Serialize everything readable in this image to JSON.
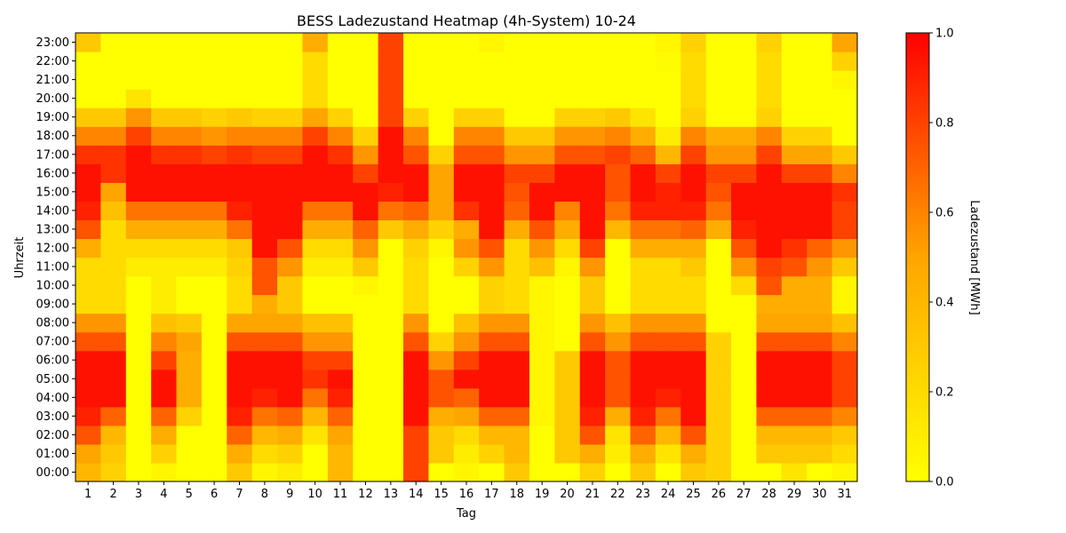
{
  "chart_data": {
    "type": "heatmap",
    "title": "BESS Ladezustand Heatmap (4h-System) 10-24",
    "xlabel": "Tag",
    "ylabel": "Uhrzeit",
    "colorbar_label": "Ladezustand [MWh]",
    "colorbar_ticks": [
      "0.0",
      "0.2",
      "0.4",
      "0.6",
      "0.8",
      "1.0"
    ],
    "vmin": 0.0,
    "vmax": 1.0,
    "colormap": [
      "#ffff00",
      "#ffa500",
      "#ff0000"
    ],
    "x_categories": [
      "1",
      "2",
      "3",
      "4",
      "5",
      "6",
      "7",
      "8",
      "9",
      "10",
      "11",
      "12",
      "13",
      "14",
      "15",
      "16",
      "17",
      "18",
      "19",
      "20",
      "21",
      "22",
      "23",
      "24",
      "25",
      "26",
      "27",
      "28",
      "29",
      "30",
      "31"
    ],
    "y_categories": [
      "00:00",
      "01:00",
      "02:00",
      "03:00",
      "04:00",
      "05:00",
      "06:00",
      "07:00",
      "08:00",
      "09:00",
      "10:00",
      "11:00",
      "12:00",
      "13:00",
      "14:00",
      "15:00",
      "16:00",
      "17:00",
      "18:00",
      "19:00",
      "20:00",
      "21:00",
      "22:00",
      "23:00"
    ],
    "values": [
      [
        0.4,
        0.25,
        0.0,
        0.05,
        0.0,
        0.0,
        0.3,
        0.05,
        0.1,
        0.0,
        0.4,
        0.0,
        0.0,
        0.8,
        0.0,
        0.05,
        0.0,
        0.3,
        0.0,
        0.0,
        0.25,
        0.0,
        0.3,
        0.0,
        0.3,
        0.25,
        0.0,
        0.0,
        0.15,
        0.0,
        0.05
      ],
      [
        0.5,
        0.3,
        0.0,
        0.25,
        0.0,
        0.0,
        0.45,
        0.2,
        0.25,
        0.0,
        0.4,
        0.0,
        0.0,
        0.8,
        0.3,
        0.1,
        0.25,
        0.4,
        0.0,
        0.3,
        0.45,
        0.1,
        0.45,
        0.15,
        0.45,
        0.25,
        0.0,
        0.3,
        0.3,
        0.3,
        0.2
      ],
      [
        0.75,
        0.4,
        0.0,
        0.45,
        0.0,
        0.0,
        0.7,
        0.4,
        0.45,
        0.15,
        0.5,
        0.0,
        0.0,
        0.8,
        0.3,
        0.2,
        0.4,
        0.4,
        0.0,
        0.3,
        0.75,
        0.15,
        0.7,
        0.4,
        0.75,
        0.25,
        0.0,
        0.4,
        0.4,
        0.4,
        0.3
      ],
      [
        0.9,
        0.7,
        0.0,
        0.7,
        0.25,
        0.0,
        0.9,
        0.65,
        0.7,
        0.4,
        0.7,
        0.0,
        0.0,
        0.95,
        0.45,
        0.5,
        0.7,
        0.7,
        0.05,
        0.3,
        0.9,
        0.45,
        0.9,
        0.65,
        0.95,
        0.25,
        0.0,
        0.7,
        0.7,
        0.7,
        0.6
      ],
      [
        0.95,
        0.95,
        0.0,
        0.95,
        0.45,
        0.0,
        0.95,
        0.9,
        0.95,
        0.65,
        0.9,
        0.0,
        0.0,
        0.95,
        0.75,
        0.7,
        0.95,
        0.95,
        0.05,
        0.3,
        0.95,
        0.75,
        0.95,
        0.9,
        0.95,
        0.25,
        0.0,
        0.95,
        0.95,
        0.95,
        0.8
      ],
      [
        0.95,
        0.95,
        0.0,
        0.95,
        0.45,
        0.0,
        0.95,
        0.95,
        0.95,
        0.85,
        0.95,
        0.0,
        0.0,
        0.95,
        0.75,
        0.95,
        0.95,
        0.95,
        0.05,
        0.3,
        0.95,
        0.75,
        0.95,
        0.95,
        0.95,
        0.25,
        0.0,
        0.95,
        0.95,
        0.95,
        0.8
      ],
      [
        0.95,
        0.95,
        0.0,
        0.8,
        0.45,
        0.0,
        0.95,
        0.95,
        0.95,
        0.8,
        0.8,
        0.0,
        0.0,
        0.95,
        0.55,
        0.8,
        0.95,
        0.95,
        0.05,
        0.3,
        0.95,
        0.75,
        0.95,
        0.95,
        0.95,
        0.25,
        0.0,
        0.95,
        0.95,
        0.95,
        0.8
      ],
      [
        0.75,
        0.75,
        0.0,
        0.6,
        0.5,
        0.0,
        0.75,
        0.75,
        0.75,
        0.55,
        0.55,
        0.0,
        0.0,
        0.75,
        0.25,
        0.55,
        0.75,
        0.75,
        0.05,
        0.0,
        0.75,
        0.55,
        0.75,
        0.75,
        0.75,
        0.25,
        0.0,
        0.75,
        0.75,
        0.75,
        0.6
      ],
      [
        0.55,
        0.55,
        0.0,
        0.35,
        0.3,
        0.0,
        0.5,
        0.5,
        0.5,
        0.35,
        0.35,
        0.0,
        0.0,
        0.55,
        0.0,
        0.35,
        0.55,
        0.55,
        0.05,
        0.0,
        0.55,
        0.35,
        0.55,
        0.55,
        0.55,
        0.0,
        0.0,
        0.5,
        0.5,
        0.5,
        0.35
      ],
      [
        0.2,
        0.2,
        0.0,
        0.1,
        0.0,
        0.0,
        0.2,
        0.45,
        0.3,
        0.0,
        0.0,
        0.0,
        0.0,
        0.2,
        0.0,
        0.0,
        0.25,
        0.2,
        0.05,
        0.0,
        0.3,
        0.0,
        0.2,
        0.2,
        0.2,
        0.0,
        0.0,
        0.45,
        0.45,
        0.45,
        0.05
      ],
      [
        0.2,
        0.2,
        0.0,
        0.1,
        0.0,
        0.0,
        0.2,
        0.75,
        0.3,
        0.0,
        0.0,
        0.05,
        0.0,
        0.2,
        0.0,
        0.0,
        0.25,
        0.2,
        0.05,
        0.0,
        0.3,
        0.0,
        0.2,
        0.2,
        0.2,
        0.0,
        0.2,
        0.75,
        0.45,
        0.45,
        0.05
      ],
      [
        0.2,
        0.2,
        0.1,
        0.1,
        0.1,
        0.1,
        0.25,
        0.75,
        0.55,
        0.1,
        0.1,
        0.3,
        0.0,
        0.2,
        0.0,
        0.25,
        0.55,
        0.2,
        0.35,
        0.05,
        0.55,
        0.0,
        0.2,
        0.2,
        0.3,
        0.0,
        0.55,
        0.8,
        0.75,
        0.55,
        0.3
      ],
      [
        0.45,
        0.2,
        0.2,
        0.2,
        0.2,
        0.2,
        0.3,
        0.95,
        0.75,
        0.2,
        0.2,
        0.55,
        0.0,
        0.25,
        0.05,
        0.55,
        0.75,
        0.2,
        0.55,
        0.2,
        0.8,
        0.0,
        0.45,
        0.45,
        0.45,
        0.0,
        0.75,
        0.95,
        0.85,
        0.7,
        0.55
      ],
      [
        0.75,
        0.2,
        0.45,
        0.45,
        0.45,
        0.45,
        0.65,
        0.95,
        0.95,
        0.45,
        0.45,
        0.7,
        0.3,
        0.45,
        0.25,
        0.45,
        0.95,
        0.45,
        0.75,
        0.45,
        0.95,
        0.4,
        0.65,
        0.65,
        0.7,
        0.45,
        0.9,
        0.95,
        0.95,
        0.95,
        0.8
      ],
      [
        0.9,
        0.35,
        0.65,
        0.65,
        0.65,
        0.65,
        0.9,
        0.95,
        0.95,
        0.65,
        0.65,
        0.95,
        0.65,
        0.7,
        0.5,
        0.85,
        0.95,
        0.7,
        0.95,
        0.6,
        0.95,
        0.65,
        0.9,
        0.9,
        0.9,
        0.65,
        0.95,
        0.95,
        0.95,
        0.95,
        0.8
      ],
      [
        0.95,
        0.5,
        0.95,
        0.95,
        0.95,
        0.95,
        0.95,
        0.95,
        0.95,
        0.95,
        0.95,
        0.95,
        0.9,
        0.95,
        0.5,
        0.95,
        0.95,
        0.75,
        0.95,
        0.95,
        0.95,
        0.75,
        0.95,
        0.9,
        0.95,
        0.75,
        0.95,
        0.95,
        0.95,
        0.95,
        0.85
      ],
      [
        0.95,
        0.85,
        0.95,
        0.95,
        0.95,
        0.95,
        0.95,
        0.95,
        0.95,
        0.95,
        0.95,
        0.8,
        0.95,
        0.95,
        0.5,
        0.95,
        0.95,
        0.8,
        0.8,
        0.95,
        0.95,
        0.75,
        0.95,
        0.8,
        0.95,
        0.8,
        0.8,
        0.95,
        0.8,
        0.8,
        0.6
      ],
      [
        0.85,
        0.85,
        0.95,
        0.85,
        0.85,
        0.8,
        0.85,
        0.8,
        0.8,
        0.95,
        0.85,
        0.55,
        0.95,
        0.75,
        0.25,
        0.75,
        0.75,
        0.55,
        0.55,
        0.75,
        0.75,
        0.8,
        0.7,
        0.4,
        0.8,
        0.55,
        0.55,
        0.8,
        0.5,
        0.5,
        0.3
      ],
      [
        0.6,
        0.6,
        0.8,
        0.6,
        0.6,
        0.55,
        0.6,
        0.6,
        0.6,
        0.8,
        0.6,
        0.25,
        0.95,
        0.6,
        0.0,
        0.6,
        0.6,
        0.3,
        0.3,
        0.55,
        0.55,
        0.6,
        0.45,
        0.1,
        0.6,
        0.45,
        0.45,
        0.6,
        0.25,
        0.25,
        0.0
      ],
      [
        0.3,
        0.3,
        0.55,
        0.3,
        0.3,
        0.25,
        0.3,
        0.25,
        0.25,
        0.5,
        0.25,
        0.0,
        0.8,
        0.25,
        0.0,
        0.25,
        0.25,
        0.0,
        0.0,
        0.25,
        0.25,
        0.3,
        0.15,
        0.0,
        0.25,
        0.0,
        0.0,
        0.25,
        0.0,
        0.0,
        0.0
      ],
      [
        0.0,
        0.0,
        0.15,
        0.0,
        0.0,
        0.0,
        0.0,
        0.0,
        0.0,
        0.2,
        0.0,
        0.0,
        0.8,
        0.0,
        0.0,
        0.0,
        0.0,
        0.0,
        0.0,
        0.0,
        0.0,
        0.0,
        0.0,
        0.0,
        0.2,
        0.0,
        0.0,
        0.2,
        0.0,
        0.0,
        0.0
      ],
      [
        0.0,
        0.0,
        0.0,
        0.0,
        0.0,
        0.0,
        0.0,
        0.0,
        0.0,
        0.2,
        0.0,
        0.0,
        0.8,
        0.0,
        0.0,
        0.0,
        0.0,
        0.0,
        0.0,
        0.0,
        0.0,
        0.0,
        0.0,
        0.0,
        0.2,
        0.0,
        0.0,
        0.2,
        0.0,
        0.0,
        0.05
      ],
      [
        0.0,
        0.0,
        0.0,
        0.0,
        0.0,
        0.0,
        0.0,
        0.0,
        0.0,
        0.2,
        0.0,
        0.0,
        0.8,
        0.0,
        0.0,
        0.0,
        0.0,
        0.0,
        0.0,
        0.0,
        0.0,
        0.0,
        0.0,
        0.02,
        0.2,
        0.0,
        0.0,
        0.2,
        0.0,
        0.0,
        0.25
      ],
      [
        0.3,
        0.0,
        0.0,
        0.0,
        0.0,
        0.0,
        0.0,
        0.0,
        0.0,
        0.45,
        0.0,
        0.0,
        0.8,
        0.0,
        0.0,
        0.0,
        0.05,
        0.0,
        0.0,
        0.0,
        0.0,
        0.0,
        0.0,
        0.05,
        0.25,
        0.0,
        0.0,
        0.25,
        0.0,
        0.0,
        0.5
      ]
    ]
  }
}
